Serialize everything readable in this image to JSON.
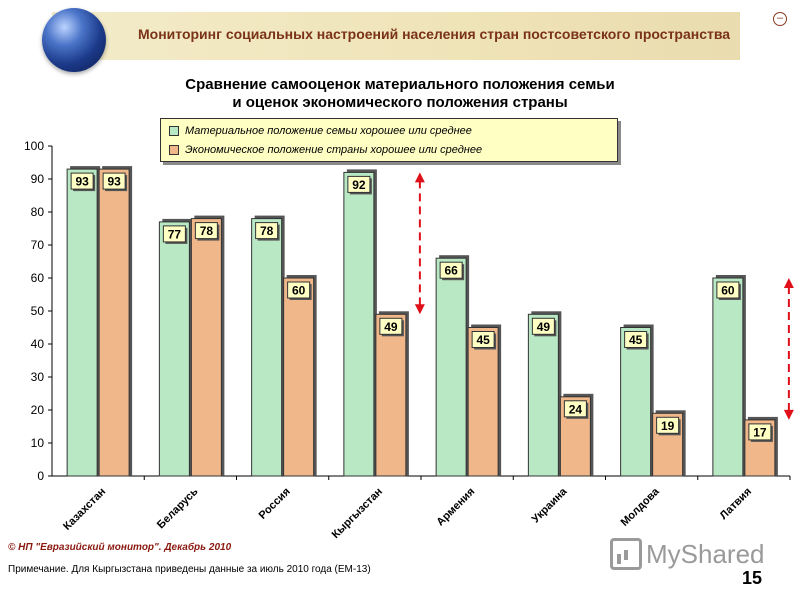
{
  "header": {
    "title": "Мониторинг социальных настроений населения стран постсоветского пространства"
  },
  "chart_data": {
    "type": "bar",
    "title_line1": "Сравнение самооценок материального положения семьи",
    "title_line2": "и оценок экономического положения страны",
    "categories": [
      "Казахстан",
      "Беларусь",
      "Россия",
      "Кыргызстан",
      "Армения",
      "Украина",
      "Молдова",
      "Латвия"
    ],
    "series": [
      {
        "name": "Материальное положение семьи хорошее или среднее",
        "values": [
          93,
          77,
          78,
          92,
          66,
          49,
          45,
          60
        ],
        "color": "#b8e8c4"
      },
      {
        "name": "Экономическое положение страны хорошее или среднее",
        "values": [
          93,
          78,
          60,
          49,
          45,
          24,
          19,
          17
        ],
        "color": "#f0b88a"
      }
    ],
    "yticks": [
      0,
      10,
      20,
      30,
      40,
      50,
      60,
      70,
      80,
      90,
      100
    ],
    "ylim": [
      0,
      100
    ],
    "legend_position": "top",
    "arrows_on": [
      "Кыргызстан",
      "Латвия"
    ],
    "arrow_color": "#e0101a"
  },
  "footer": {
    "copyright": "© НП \"Евразийский монитор\". Декабрь 2010",
    "note": "Примечание. Для Кыргызстана приведены данные за июль 2010 года (ЕМ-13)",
    "page_number": "15",
    "watermark": "MyShared"
  }
}
